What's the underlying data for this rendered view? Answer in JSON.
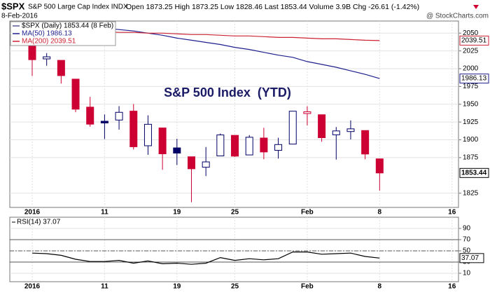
{
  "header": {
    "symbol": "$SPX",
    "name": "S&P 500 Large Cap Index INDX",
    "date": "8-Feb-2016",
    "quote": "Open 1873.25 High 1873.25 Low 1828.46 Last 1853.44 Volume 3.9B Chg -26.61 (-1.42%)",
    "source": "@ StockCharts.com"
  },
  "chart_data": [
    {
      "type": "candlestick",
      "title": "S&P 500 Index  (YTD)",
      "label": "$SPX (Daily) 1853.44 (8 Feb)",
      "categories": [
        "2016",
        null,
        null,
        null,
        null,
        "11",
        null,
        null,
        null,
        null,
        "19",
        null,
        null,
        null,
        "25",
        null,
        null,
        null,
        null,
        "Feb",
        null,
        null,
        null,
        null,
        "8",
        null,
        null,
        null,
        null,
        "16"
      ],
      "open": [
        2038.2,
        2013.78,
        2011.71,
        1985.32,
        1945.97,
        1926.12,
        1927.83,
        1940.34,
        1891.68,
        1916.68,
        1888.66,
        1876.18,
        1861.46,
        1877.4,
        1906.28,
        1878.79,
        1902.52,
        1885.22,
        1894.0,
        1936.94,
        1935.26,
        1907.07,
        1911.67,
        1913.07,
        1873.25,
        null,
        null,
        null,
        null,
        null
      ],
      "high": [
        2038.2,
        2021.94,
        2011.71,
        1985.32,
        1960.4,
        1935.65,
        1947.38,
        1950.33,
        1934.47,
        1916.68,
        1901.44,
        1876.18,
        1889.85,
        1908.85,
        1906.28,
        1906.73,
        1916.99,
        1902.96,
        1940.24,
        1947.2,
        1935.26,
        1918.01,
        1927.35,
        1913.07,
        1873.25,
        null,
        null,
        null,
        null,
        null
      ],
      "low": [
        1989.7,
        2004.17,
        1979.05,
        1938.83,
        1918.46,
        1901.1,
        1914.35,
        1886.41,
        1878.93,
        1857.83,
        1864.6,
        1812.29,
        1848.98,
        1877.4,
        1875.97,
        1878.79,
        1872.7,
        1873.65,
        1894.0,
        1920.3,
        1897.29,
        1872.23,
        1900.52,
        1872.65,
        1828.46,
        null,
        null,
        null,
        null,
        null
      ],
      "close": [
        2012.66,
        2016.71,
        1990.26,
        1943.09,
        1922.03,
        1923.67,
        1938.68,
        1890.28,
        1921.84,
        1880.33,
        1881.33,
        1859.33,
        1868.99,
        1906.9,
        1877.08,
        1903.63,
        1882.95,
        1893.36,
        1940.24,
        1939.38,
        1903.03,
        1912.53,
        1915.45,
        1880.05,
        1853.44,
        null,
        null,
        null,
        null,
        null
      ],
      "up_color": "#000066",
      "down_color": "#cc0033",
      "series": [
        {
          "name": "MA(50) 1986.13",
          "color": "#1f1f8f",
          "values": [
            2063,
            2062,
            2061,
            2060,
            2059,
            2057,
            2055,
            2053,
            2050,
            2047,
            2043,
            2040,
            2037,
            2034,
            2030,
            2027,
            2023,
            2019,
            2016,
            2010,
            2006,
            2002,
            1997,
            1992,
            1986.13,
            null,
            null,
            null,
            null,
            null
          ]
        },
        {
          "name": "MA(200) 2039.51",
          "color": "#cc2233",
          "values": [
            2054,
            2054,
            2053,
            2053,
            2052,
            2052,
            2051,
            2051,
            2050,
            2050,
            2049,
            2048,
            2048,
            2047,
            2046,
            2046,
            2045,
            2044,
            2044,
            2043,
            2042,
            2042,
            2041,
            2040,
            2039.51,
            null,
            null,
            null,
            null,
            null
          ]
        }
      ],
      "ylim": [
        1805,
        2067
      ],
      "yticks": [
        1825,
        1875,
        1900,
        1925,
        1950,
        1975,
        2000,
        2025,
        2050
      ],
      "grid": true
    },
    {
      "type": "line",
      "series": [
        {
          "name": "RSI(14) 37.07",
          "color": "#000000",
          "values": [
            46,
            45,
            42,
            35,
            31,
            31,
            33,
            28,
            32,
            27,
            28,
            26,
            28,
            38,
            33,
            36,
            34,
            36,
            48,
            48,
            44,
            45,
            46,
            40,
            37.07,
            null,
            null,
            null,
            null,
            null
          ]
        }
      ],
      "reference_lines": [
        {
          "value": 70,
          "style": "solid"
        },
        {
          "value": 50,
          "style": "dashdot"
        },
        {
          "value": 30,
          "style": "solid"
        }
      ],
      "ylim": [
        -5,
        110
      ],
      "yticks": [
        10,
        30,
        50,
        70,
        90
      ],
      "grid": true
    }
  ]
}
